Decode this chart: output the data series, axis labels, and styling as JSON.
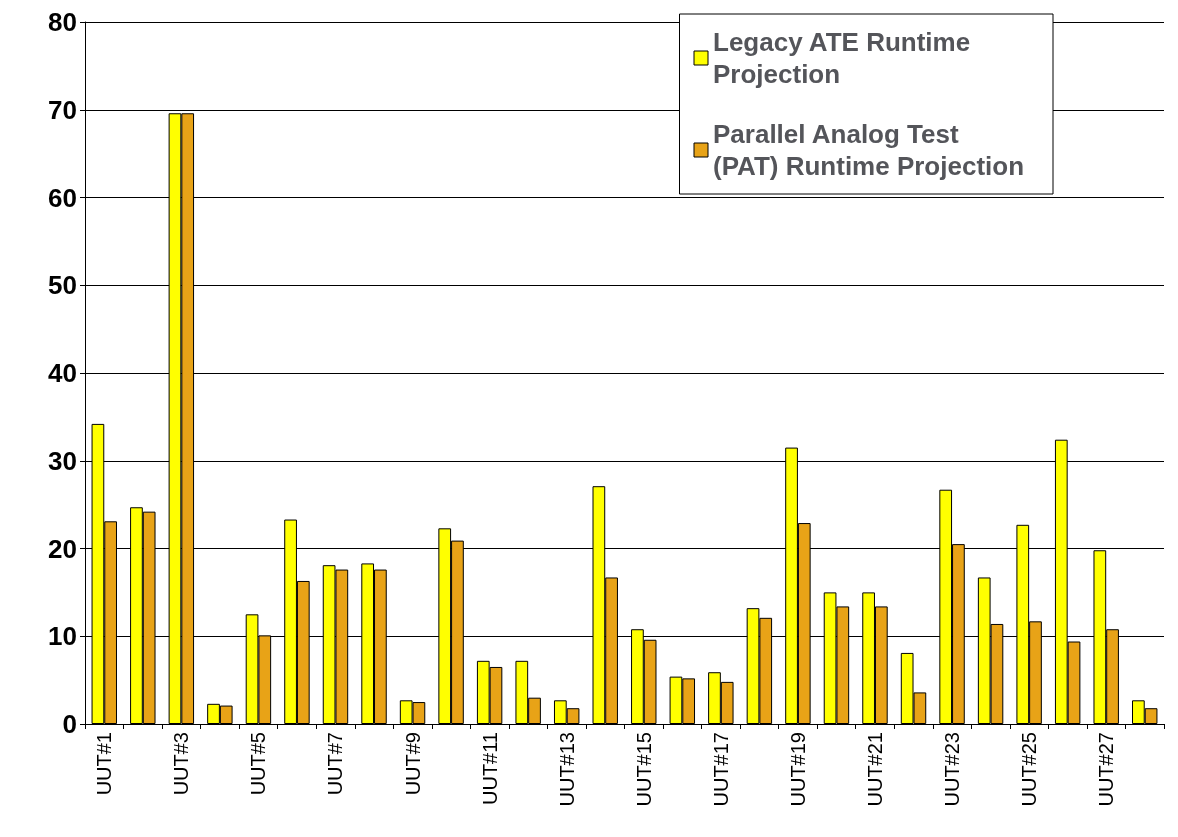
{
  "chart_data": {
    "type": "bar",
    "categories": [
      "UUT#1",
      null,
      "UUT#3",
      null,
      "UUT#5",
      null,
      "UUT#7",
      null,
      "UUT#9",
      null,
      "UUT#11",
      null,
      "UUT#13",
      null,
      "UUT#15",
      null,
      "UUT#17",
      null,
      "UUT#19",
      null,
      "UUT#21",
      null,
      "UUT#23",
      null,
      "UUT#25",
      null,
      "UUT#27",
      null
    ],
    "series": [
      {
        "name": "Legacy ATE Runtime Projection",
        "color": "#ffff00",
        "values": [
          34.2,
          24.7,
          69.6,
          2.3,
          12.5,
          23.3,
          18.1,
          18.3,
          2.7,
          22.3,
          7.2,
          7.2,
          2.7,
          27.1,
          10.8,
          5.4,
          5.9,
          13.2,
          31.5,
          15.0,
          15.0,
          8.1,
          26.7,
          16.7,
          22.7,
          32.4,
          19.8,
          2.7
        ]
      },
      {
        "name": "Parallel Analog Test (PAT) Runtime Projection",
        "color": "#e8a317",
        "values": [
          23.1,
          24.2,
          69.6,
          2.1,
          10.1,
          16.3,
          17.6,
          17.6,
          2.5,
          20.9,
          6.5,
          3.0,
          1.8,
          16.7,
          9.6,
          5.2,
          4.8,
          12.1,
          22.9,
          13.4,
          13.4,
          3.6,
          20.5,
          11.4,
          11.7,
          9.4,
          10.8,
          1.8
        ]
      }
    ],
    "ylim": [
      0,
      80
    ],
    "yticks": [
      0,
      10,
      20,
      30,
      40,
      50,
      60,
      70,
      80
    ],
    "grid": "y",
    "legend": "top right"
  }
}
